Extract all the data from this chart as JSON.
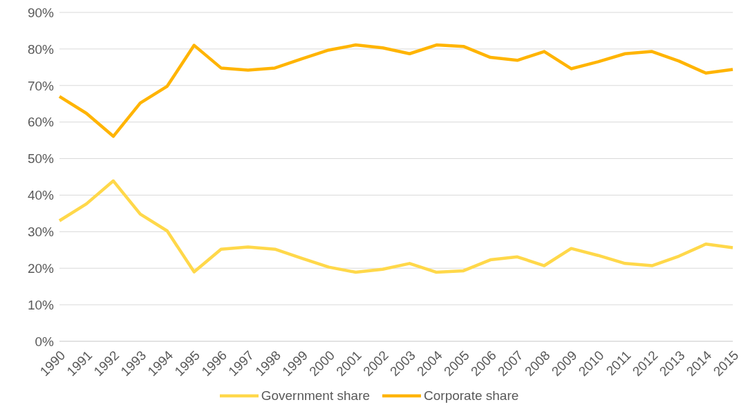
{
  "chart_data": {
    "type": "line",
    "categories": [
      "1990",
      "1991",
      "1992",
      "1993",
      "1994",
      "1995",
      "1996",
      "1997",
      "1998",
      "1999",
      "2000",
      "2001",
      "2002",
      "2003",
      "2004",
      "2005",
      "2006",
      "2007",
      "2008",
      "2009",
      "2010",
      "2011",
      "2012",
      "2013",
      "2014",
      "2015"
    ],
    "series": [
      {
        "name": "Government share",
        "color": "#ffd84a",
        "values": [
          33,
          37.6,
          43.9,
          34.8,
          30.2,
          19,
          25.2,
          25.8,
          25.2,
          22.7,
          20.3,
          18.9,
          19.7,
          21.3,
          18.9,
          19.3,
          22.3,
          23.1,
          20.7,
          25.4,
          23.5,
          21.3,
          20.7,
          23.3,
          26.6,
          25.6
        ]
      },
      {
        "name": "Corporate share",
        "color": "#ffb400",
        "values": [
          67,
          62.4,
          56.1,
          65.2,
          69.8,
          81,
          74.8,
          74.2,
          74.8,
          77.3,
          79.7,
          81.1,
          80.3,
          78.7,
          81.1,
          80.7,
          77.7,
          76.9,
          79.3,
          74.6,
          76.5,
          78.7,
          79.3,
          76.7,
          73.4,
          74.4
        ]
      }
    ],
    "ylim": [
      0,
      90
    ],
    "yticks": [
      {
        "value": 0,
        "label": "0%"
      },
      {
        "value": 10,
        "label": "10%"
      },
      {
        "value": 20,
        "label": "20%"
      },
      {
        "value": 30,
        "label": "30%"
      },
      {
        "value": 40,
        "label": "40%"
      },
      {
        "value": 50,
        "label": "50%"
      },
      {
        "value": 60,
        "label": "60%"
      },
      {
        "value": 70,
        "label": "70%"
      },
      {
        "value": 80,
        "label": "80%"
      },
      {
        "value": 90,
        "label": "90%"
      }
    ],
    "grid": "y",
    "legend": "bottom",
    "marker": "none",
    "line_style": "solid"
  }
}
